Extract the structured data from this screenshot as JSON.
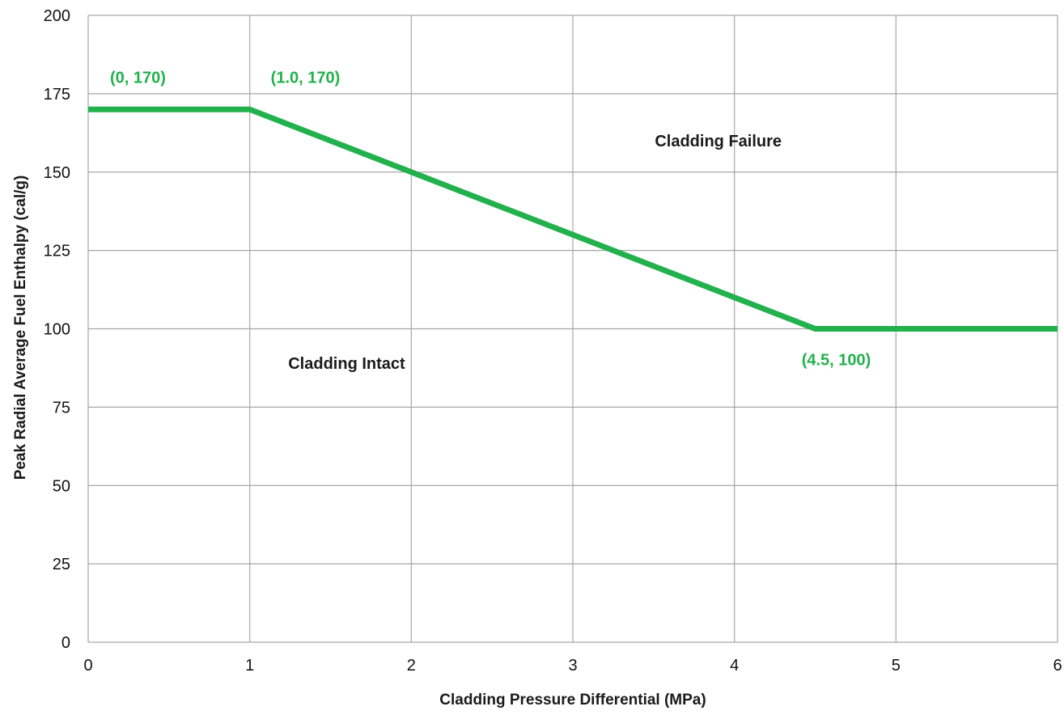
{
  "chart_data": {
    "type": "line",
    "title": "",
    "xlabel": "Cladding Pressure Differential (MPa)",
    "ylabel": "Peak Radial Average Fuel Enthalpy (cal/g)",
    "xlim": [
      0,
      6
    ],
    "ylim": [
      0,
      200
    ],
    "x_ticks": [
      "0",
      "1",
      "2",
      "3",
      "4",
      "5",
      "6"
    ],
    "y_ticks": [
      "0",
      "25",
      "50",
      "75",
      "100",
      "125",
      "150",
      "175",
      "200"
    ],
    "grid": true,
    "legend": "none",
    "series": [
      {
        "color": "#22b14c",
        "points": [
          {
            "x": 0,
            "y": 170
          },
          {
            "x": 1.0,
            "y": 170
          },
          {
            "x": 4.5,
            "y": 100
          },
          {
            "x": 6,
            "y": 100
          }
        ]
      }
    ],
    "annotations": [
      {
        "text": "(0, 170)",
        "x": 0,
        "y": 170,
        "color": "#22b14c"
      },
      {
        "text": "(1.0, 170)",
        "x": 1.0,
        "y": 170,
        "color": "#22b14c"
      },
      {
        "text": "(4.5, 100)",
        "x": 4.5,
        "y": 100,
        "color": "#22b14c"
      }
    ],
    "regions": [
      {
        "text": "Cladding Failure",
        "x": 3.9,
        "y": 160
      },
      {
        "text": "Cladding Intact",
        "x": 1.6,
        "y": 89
      }
    ]
  }
}
